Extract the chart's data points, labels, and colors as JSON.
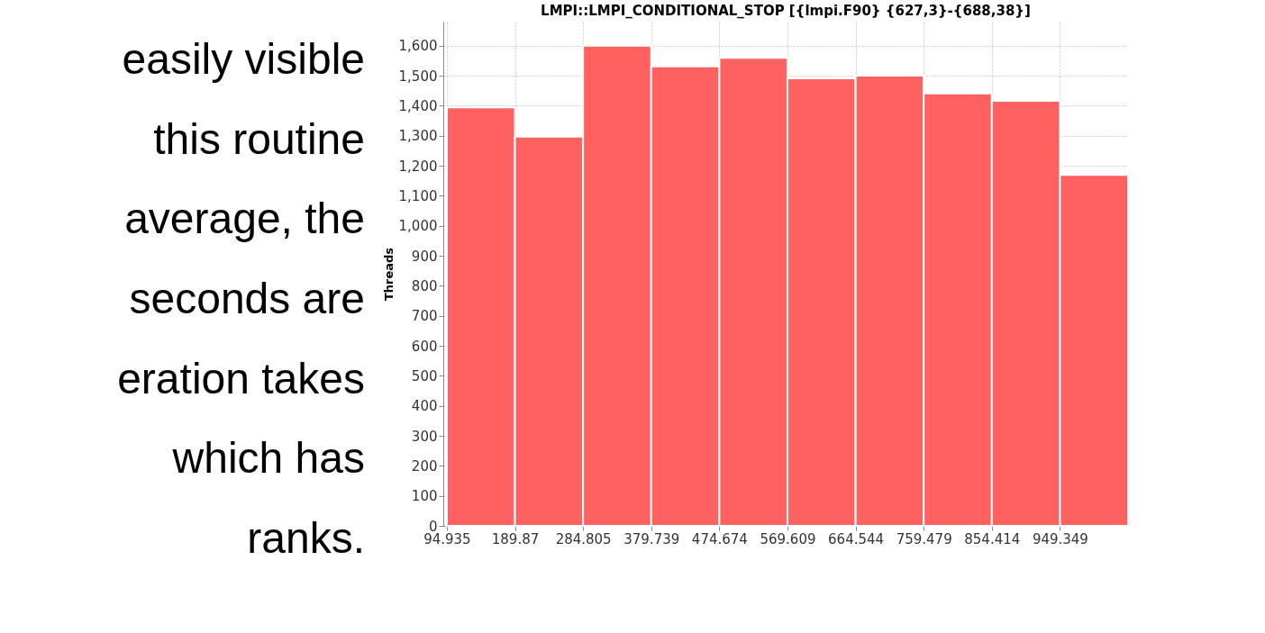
{
  "chart_data": {
    "type": "histogram",
    "title": "LMPI::LMPI_CONDITIONAL_STOP [{lmpi.F90} {627,3}-{688,38}]",
    "ylabel": "Threads",
    "bins": [
      94.935,
      189.87,
      284.805,
      379.739,
      474.674,
      569.609,
      664.544,
      759.479,
      854.414,
      949.349,
      1044.284
    ],
    "values": [
      1394,
      1297,
      1600,
      1531,
      1559,
      1491,
      1500,
      1441,
      1416,
      1169
    ],
    "color": "#ff6060",
    "xlim": [
      90,
      1044.284
    ],
    "xticks": [
      94.935,
      189.87,
      284.805,
      379.739,
      474.674,
      569.609,
      664.544,
      759.479,
      854.414,
      949.349
    ],
    "ylim": [
      0,
      1680
    ],
    "yticks": [
      0,
      100,
      200,
      300,
      400,
      500,
      600,
      700,
      800,
      900,
      {
        "value": 1000,
        "label": "1,000"
      },
      {
        "value": 1100,
        "label": "1,100"
      },
      {
        "value": 1200,
        "label": "1,200"
      },
      {
        "value": 1300,
        "label": "1,300"
      },
      {
        "value": 1400,
        "label": "1,400"
      },
      {
        "value": 1500,
        "label": "1,500"
      },
      {
        "value": 1600,
        "label": "1,600"
      }
    ],
    "grid": true,
    "annotations": [
      "easily visible",
      "this routine",
      "average, the",
      "seconds are",
      "eration takes",
      "which has",
      "ranks."
    ]
  }
}
